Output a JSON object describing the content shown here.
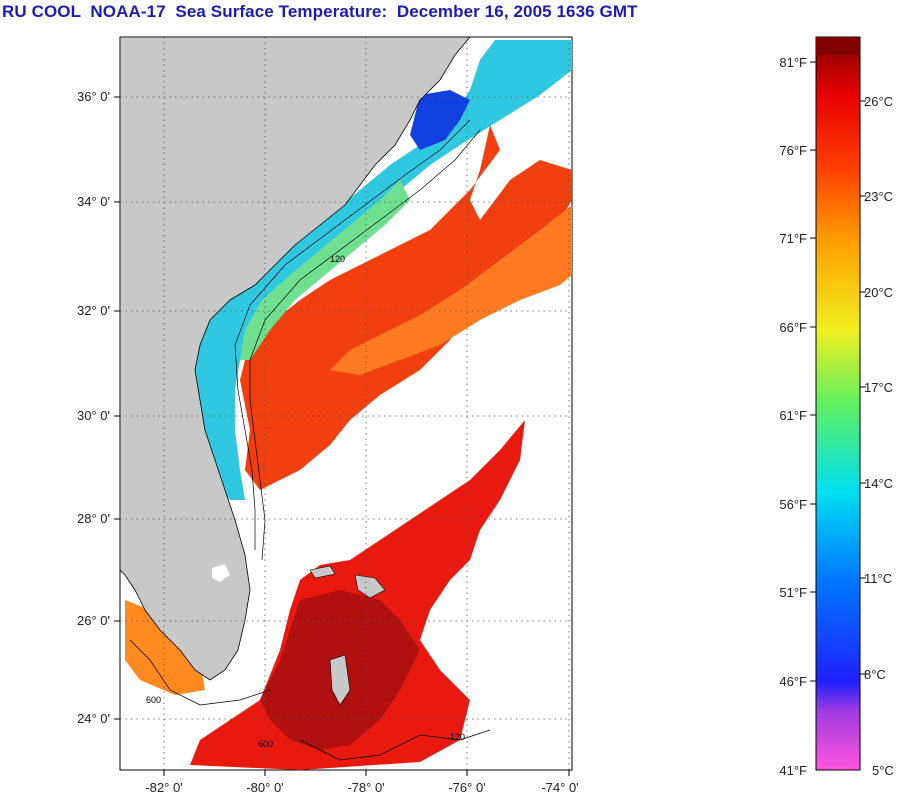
{
  "title": "RU COOL  NOAA-17  Sea Surface Temperature:  December 16, 2005 1636 GMT",
  "map": {
    "lat_labels": [
      "36° 0'",
      "34° 0'",
      "32° 0'",
      "30° 0'",
      "28° 0'",
      "26° 0'",
      "24° 0'"
    ],
    "lon_labels": [
      "-82° 0'",
      "-80° 0'",
      "-78° 0'",
      "-76° 0'",
      "-74° 0'"
    ],
    "contour_labels": [
      "120",
      "600",
      "120",
      "600"
    ],
    "colors": {
      "land": "#c8c8c8",
      "cloud": "#ffffff",
      "grid": "#555555"
    }
  },
  "colorbar": {
    "f_labels": [
      "81°F",
      "76°F",
      "71°F",
      "66°F",
      "61°F",
      "56°F",
      "51°F",
      "46°F",
      "41°F"
    ],
    "c_labels": [
      "26°C",
      "23°C",
      "20°C",
      "17°C",
      "14°C",
      "11°C",
      "8°C",
      "5°C"
    ]
  }
}
